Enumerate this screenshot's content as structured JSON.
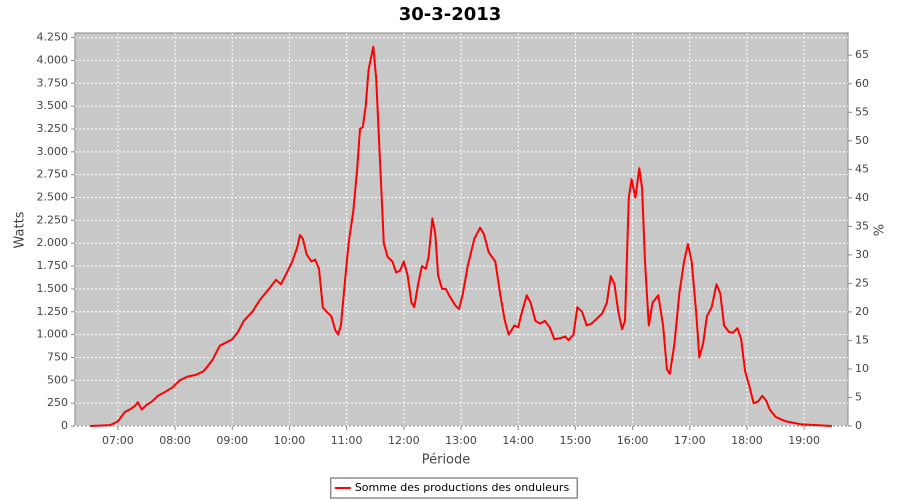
{
  "chart_data": {
    "type": "line",
    "title": "30-3-2013",
    "x_label": "Période",
    "y_label": "Watts",
    "y2_label": "%",
    "x": [
      "06:31",
      "06:52",
      "07:00",
      "07:07",
      "07:13",
      "07:18",
      "07:21",
      "07:25",
      "07:30",
      "07:36",
      "07:42",
      "07:49",
      "07:57",
      "08:05",
      "08:13",
      "08:22",
      "08:30",
      "08:39",
      "08:47",
      "08:53",
      "09:00",
      "09:06",
      "09:12",
      "09:21",
      "09:29",
      "09:37",
      "09:46",
      "09:51",
      "09:56",
      "10:03",
      "10:08",
      "10:11",
      "10:14",
      "10:18",
      "10:23",
      "10:27",
      "10:31",
      "10:35",
      "10:39",
      "10:44",
      "10:48",
      "10:51",
      "10:54",
      "10:58",
      "11:02",
      "11:07",
      "11:11",
      "11:14",
      "11:17",
      "11:20",
      "11:23",
      "11:28",
      "11:31",
      "11:35",
      "11:39",
      "11:43",
      "11:48",
      "11:52",
      "11:56",
      "12:00",
      "12:04",
      "12:08",
      "12:11",
      "12:15",
      "12:19",
      "12:23",
      "12:26",
      "12:30",
      "12:33",
      "12:36",
      "12:40",
      "12:44",
      "12:48",
      "12:54",
      "12:58",
      "13:02",
      "13:07",
      "13:14",
      "13:20",
      "13:24",
      "13:29",
      "13:36",
      "13:41",
      "13:46",
      "13:50",
      "13:56",
      "14:00",
      "14:04",
      "14:09",
      "14:13",
      "14:18",
      "14:23",
      "14:28",
      "14:33",
      "14:38",
      "14:44",
      "14:49",
      "14:53",
      "14:58",
      "15:02",
      "15:07",
      "15:12",
      "15:17",
      "15:23",
      "15:28",
      "15:33",
      "15:37",
      "15:41",
      "15:45",
      "15:49",
      "15:52",
      "15:56",
      "15:59",
      "16:03",
      "16:07",
      "16:10",
      "16:13",
      "16:17",
      "16:21",
      "16:27",
      "16:32",
      "16:36",
      "16:39",
      "16:44",
      "16:49",
      "16:54",
      "16:58",
      "17:02",
      "17:07",
      "17:10",
      "17:14",
      "17:18",
      "17:23",
      "17:28",
      "17:32",
      "17:36",
      "17:41",
      "17:45",
      "17:50",
      "17:54",
      "17:58",
      "18:03",
      "18:07",
      "18:12",
      "18:16",
      "18:20",
      "18:24",
      "18:30",
      "18:41",
      "18:56",
      "19:12",
      "19:29"
    ],
    "series": [
      {
        "name": "Somme des productions des onduleurs",
        "color": "#ff0000",
        "values": [
          0,
          10,
          50,
          150,
          185,
          220,
          260,
          180,
          230,
          270,
          330,
          370,
          420,
          500,
          540,
          560,
          600,
          720,
          880,
          910,
          950,
          1030,
          1150,
          1250,
          1380,
          1480,
          1600,
          1550,
          1650,
          1800,
          1950,
          2090,
          2050,
          1880,
          1800,
          1820,
          1720,
          1300,
          1250,
          1200,
          1050,
          1000,
          1100,
          1550,
          2000,
          2350,
          2800,
          3250,
          3270,
          3500,
          3900,
          4150,
          3800,
          2900,
          2000,
          1850,
          1800,
          1680,
          1700,
          1800,
          1650,
          1350,
          1300,
          1550,
          1750,
          1720,
          1850,
          2270,
          2100,
          1650,
          1500,
          1500,
          1420,
          1320,
          1280,
          1450,
          1750,
          2050,
          2170,
          2100,
          1900,
          1800,
          1450,
          1150,
          1000,
          1100,
          1080,
          1250,
          1430,
          1350,
          1150,
          1120,
          1150,
          1080,
          950,
          960,
          980,
          940,
          1000,
          1300,
          1250,
          1100,
          1120,
          1180,
          1230,
          1350,
          1640,
          1550,
          1250,
          1060,
          1150,
          2500,
          2700,
          2500,
          2820,
          2600,
          1800,
          1100,
          1350,
          1430,
          1100,
          620,
          570,
          900,
          1450,
          1800,
          1990,
          1800,
          1200,
          750,
          900,
          1200,
          1300,
          1550,
          1450,
          1100,
          1030,
          1020,
          1070,
          950,
          600,
          420,
          250,
          270,
          330,
          280,
          180,
          100,
          50,
          20,
          10,
          0
        ]
      }
    ],
    "xlim": [
      "06:15",
      "19:46"
    ],
    "xticks": [
      "07:00",
      "08:00",
      "09:00",
      "10:00",
      "11:00",
      "12:00",
      "13:00",
      "14:00",
      "15:00",
      "16:00",
      "17:00",
      "18:00",
      "19:00"
    ],
    "ylim": [
      0,
      4300
    ],
    "yticks": [
      0,
      250,
      500,
      750,
      {
        "value": 1000,
        "label": "1.000"
      },
      {
        "value": 1250,
        "label": "1.250"
      },
      {
        "value": 1500,
        "label": "1.500"
      },
      {
        "value": 1750,
        "label": "1.750"
      },
      {
        "value": 2000,
        "label": "2.000"
      },
      {
        "value": 2250,
        "label": "2.250"
      },
      {
        "value": 2500,
        "label": "2.500"
      },
      {
        "value": 2750,
        "label": "2.750"
      },
      {
        "value": 3000,
        "label": "3.000"
      },
      {
        "value": 3250,
        "label": "3.250"
      },
      {
        "value": 3500,
        "label": "3.500"
      },
      {
        "value": 3750,
        "label": "3.750"
      },
      {
        "value": 4000,
        "label": "4.000"
      },
      {
        "value": 4250,
        "label": "4.250"
      }
    ],
    "y2lim": [
      0,
      68.9
    ],
    "y2ticks": [
      0,
      5,
      10,
      15,
      20,
      25,
      30,
      35,
      40,
      45,
      50,
      55,
      60,
      65
    ],
    "grid": true,
    "background": "#c8c8c8",
    "legend": "bottom"
  }
}
